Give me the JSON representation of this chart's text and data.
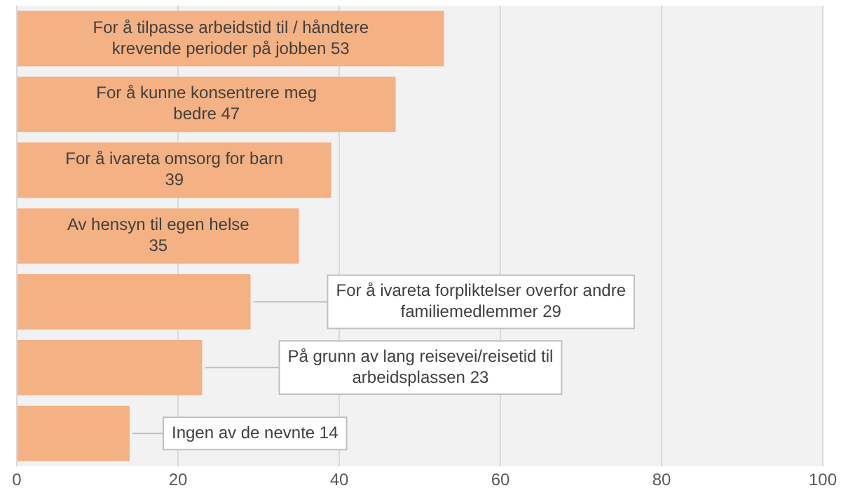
{
  "chart_data": {
    "type": "bar",
    "orientation": "horizontal",
    "categories": [
      "For å tilpasse arbeidstid til / håndtere krevende perioder på jobben",
      "For å kunne konsentrere meg bedre",
      "For å ivareta omsorg for barn",
      "Av hensyn til egen helse",
      null,
      null,
      null
    ],
    "values": [
      53,
      47,
      39,
      35,
      29,
      23,
      14
    ],
    "value_labels": [
      "53",
      "47",
      "39",
      "35",
      null,
      null,
      null
    ],
    "annotations": [
      {
        "text": "For å ivareta forpliktelser overfor andre familiemedlemmer 29",
        "x": 29
      },
      {
        "text": "På grunn av lang reisevei/reisetid til arbeidsplassen 23",
        "x": 23
      },
      {
        "text": "Ingen av de nevnte 14",
        "x": 14
      }
    ],
    "color": "#f4b183",
    "xlim": [
      0,
      100
    ],
    "xticks": [
      0,
      20,
      40,
      60,
      80,
      100
    ],
    "grid": "x",
    "tick_labels": "x"
  }
}
